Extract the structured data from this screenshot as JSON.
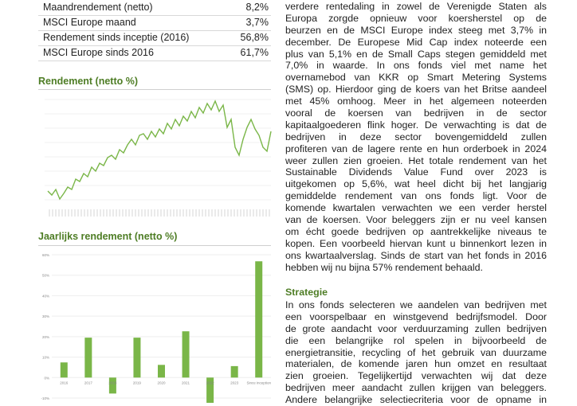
{
  "table": {
    "rows": [
      [
        "Maandrendement (netto)",
        "8,2%"
      ],
      [
        "MSCI Europe maand",
        "3,7%"
      ],
      [
        "Rendement sinds inceptie (2016)",
        "56,8%"
      ],
      [
        "MSCI Europe sinds 2016",
        "61,7%"
      ]
    ]
  },
  "line_chart": {
    "title": "Rendement (netto %)",
    "chart_data": {
      "type": "line",
      "color": "#7ab648",
      "ylim": [
        0,
        160
      ],
      "values": [
        40,
        35,
        42,
        30,
        37,
        45,
        42,
        55,
        52,
        62,
        58,
        70,
        65,
        75,
        72,
        82,
        85,
        80,
        92,
        88,
        98,
        105,
        98,
        110,
        112,
        105,
        115,
        108,
        118,
        112,
        125,
        118,
        130,
        122,
        134,
        128,
        140,
        132,
        145,
        138,
        150,
        142,
        153,
        140,
        148,
        120,
        130,
        95,
        85,
        105,
        120,
        130,
        118,
        110,
        95,
        90,
        115
      ]
    }
  },
  "bar_chart": {
    "title": "Jaarlijks rendement (netto %)",
    "chart_data": {
      "type": "bar",
      "color": "#7ab648",
      "categories": [
        "2016",
        "2017",
        "2018",
        "2019",
        "2020",
        "2021",
        "2022",
        "2023",
        "Since inception"
      ],
      "values": [
        7.4,
        19.5,
        -7.8,
        19.5,
        6.2,
        22.6,
        -15,
        5.6,
        56.8
      ],
      "ylim": [
        -10,
        60
      ],
      "yticks": [
        {
          "value": 60,
          "label": "60%"
        },
        {
          "value": 50,
          "label": "50%"
        },
        {
          "value": 40,
          "label": "40%"
        },
        {
          "value": 30,
          "label": "30%"
        },
        {
          "value": 20,
          "label": "20%"
        },
        {
          "value": 10,
          "label": "10%"
        },
        {
          "value": 0,
          "label": "0%"
        },
        {
          "value": -10,
          "label": "-10%"
        }
      ],
      "grid": true
    }
  },
  "text": {
    "paragraph1": [
      "verdere rentedaling in zowel de Verenigde Staten als",
      "Europa zorgde opnieuw voor koersherstel op de",
      "beurzen en de MSCI Europe index steeg met 3,7% in",
      "december. De Europese Mid Cap index noteerde een",
      "plus van 5,1% en de Small Caps stegen gemiddeld met",
      "7,0% in waarde. In ons fonds viel met name het",
      "overnamebod van KKR op Smart Metering Systems",
      "(SMS) op. Hierdoor ging de koers van het Britse aandeel",
      "met 45% omhoog. Meer in het algemeen noteerden",
      "vooral de koersen van bedrijven in de sector",
      "kapitaalgoederen flink hoger. De verwachting is dat de",
      "bedrijven in deze sector bovengemiddeld zullen",
      "profiteren van de lagere rente en hun orderboek in 2024",
      "weer zullen zien groeien. Het totale rendement van het",
      "Sustainable Dividends Value Fund over 2023 is",
      "uitgekomen op 5,6%, wat heel dicht bij het langjarig",
      "gemiddelde rendement van ons fonds ligt. Voor de",
      "komende kwartalen verwachten we een verder herstel",
      "van de koersen. Voor beleggers zijn er nu veel kansen",
      "om écht goede bedrijven op aantrekkelijke niveaus te",
      "kopen. Een voorbeeld hiervan kunt u binnenkort lezen in",
      "ons kwartaalverslag. Sinds de start van het fonds in 2016",
      "hebben wij nu bijna 57% rendement behaald."
    ],
    "heading": "Strategie",
    "paragraph2": [
      "In ons fonds selecteren we aandelen van bedrijven met",
      "een voorspelbaar en winstgevend bedrijfsmodel. Door",
      "de grote aandacht voor verduurzaming zullen bedrijven",
      "die een belangrijke rol spelen in bijvoorbeeld de",
      "energietransitie, recycling of het gebruik van duurzame",
      "materialen, de komende jaren hun omzet en resultaat",
      "zien groeien. Tegelijkertijd verwachten wij dat deze",
      "bedrijven meer aandacht zullen krijgen van beleggers.",
      "Andere belangrijke selectiecriteria voor de opname in"
    ]
  }
}
